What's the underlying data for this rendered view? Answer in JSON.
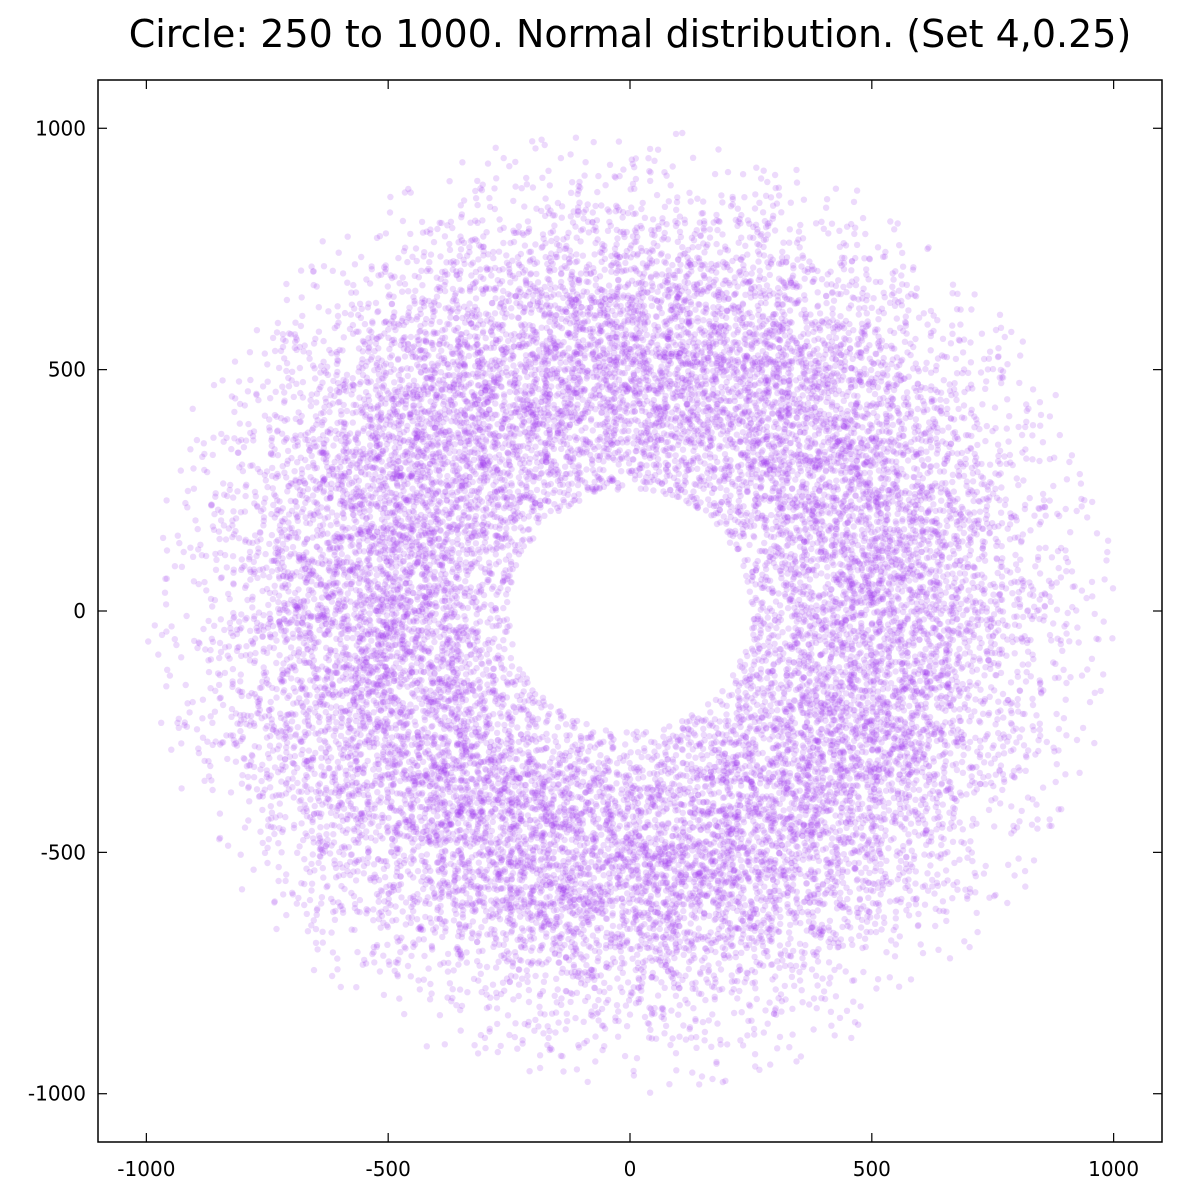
{
  "chart_data": {
    "type": "scatter",
    "title": "Circle: 250 to 1000. Normal distribution. (Set 4,0.25)",
    "xlabel": "",
    "ylabel": "",
    "xlim": [
      -1100,
      1100
    ],
    "ylim": [
      -1100,
      1100
    ],
    "x_ticks": [
      -1000,
      -500,
      0,
      500,
      1000
    ],
    "y_ticks": [
      -1000,
      -500,
      0,
      500,
      1000
    ],
    "x_tick_labels": [
      "-1000",
      "-500",
      "0",
      "500",
      "1000"
    ],
    "y_tick_labels": [
      "-1000",
      "-500",
      "0",
      "500",
      "1000"
    ],
    "grid": false,
    "legend": "none",
    "marker_color": "#9933ee",
    "marker_opacity": 0.18,
    "series": [
      {
        "distribution": "annulus",
        "inner_radius": 250,
        "outer_radius": 1000,
        "radial_distribution": "normal",
        "approx_point_count": 20000
      }
    ]
  }
}
